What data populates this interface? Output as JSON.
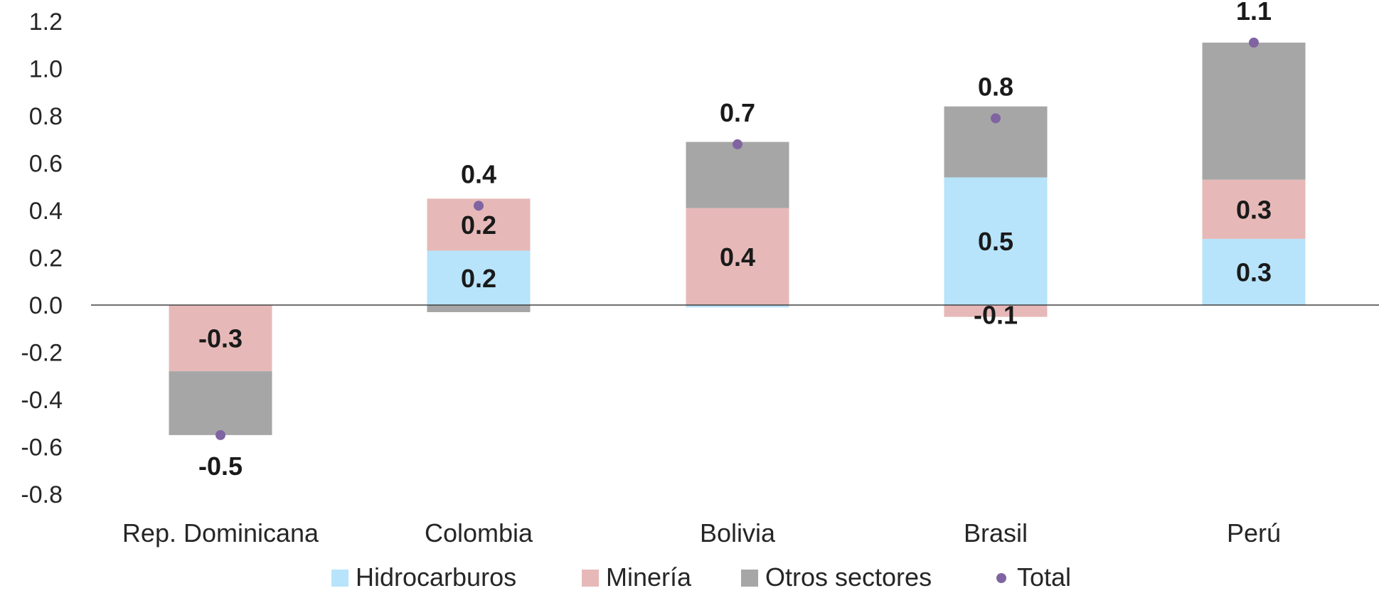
{
  "chart_data": {
    "type": "bar",
    "stacked": true,
    "categories": [
      "Rep. Dominicana",
      "Colombia",
      "Bolivia",
      "Brasil",
      "Perú"
    ],
    "series": [
      {
        "name": "Hidrocarburos",
        "values": [
          0.0,
          0.23,
          -0.01,
          0.54,
          0.28
        ],
        "labels": [
          "",
          "0.2",
          "",
          "0.5",
          "0.3"
        ],
        "color": "#b7e3fb"
      },
      {
        "name": "Minería",
        "values": [
          -0.28,
          0.22,
          0.41,
          -0.05,
          0.25
        ],
        "labels": [
          "-0.3",
          "0.2",
          "0.4",
          "-0.1",
          "0.3"
        ],
        "color": "#e6b9b8"
      },
      {
        "name": "Otros sectores",
        "values": [
          -0.27,
          -0.03,
          0.28,
          0.3,
          0.58
        ],
        "labels": [
          "",
          "",
          "",
          "",
          ""
        ],
        "color": "#a6a6a6"
      }
    ],
    "total": {
      "name": "Total",
      "values": [
        -0.55,
        0.42,
        0.68,
        0.79,
        1.11
      ],
      "labels": [
        "-0.5",
        "0.4",
        "0.7",
        "0.8",
        "1.1"
      ],
      "color": "#8064a2"
    },
    "y_ticks": [
      "1.2",
      "1.0",
      "0.8",
      "0.6",
      "0.4",
      "0.2",
      "0.0",
      "-0.2",
      "-0.4",
      "-0.6",
      "-0.8"
    ],
    "ylim": [
      -0.8,
      1.2
    ],
    "legend_position": "bottom",
    "grid": false
  }
}
